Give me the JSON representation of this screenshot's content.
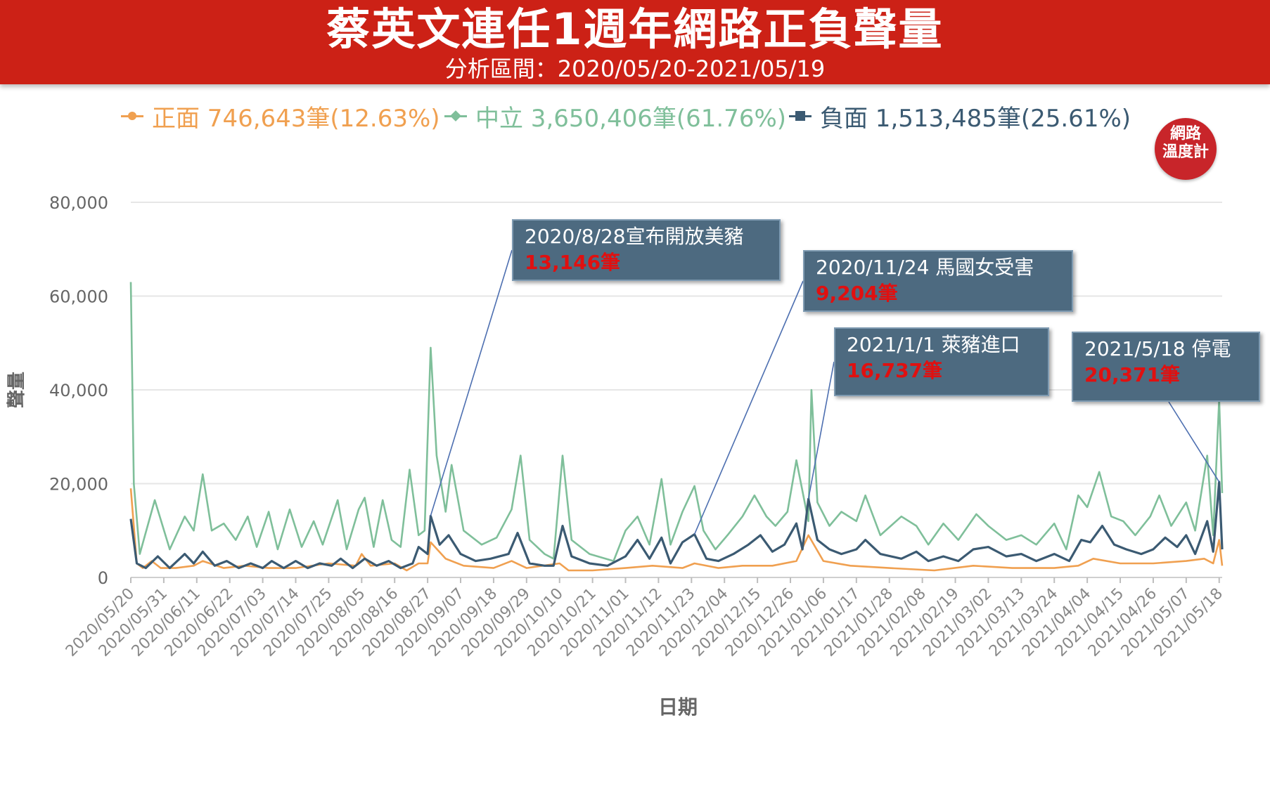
{
  "header": {
    "title": "蔡英文連任1週年網路正負聲量",
    "subtitle": "分析區間：2020/05/20-2021/05/19"
  },
  "badge": {
    "line1": "網路",
    "line2": "溫度計"
  },
  "legend": [
    {
      "label": "正面 746,643筆(12.63%)",
      "color": "#f0a050",
      "marker": "circle"
    },
    {
      "label": "中立 3,650,406筆(61.76%)",
      "color": "#7fbf9a",
      "marker": "diamond"
    },
    {
      "label": "負面 1,513,485筆(25.61%)",
      "color": "#3b5a72",
      "marker": "square"
    }
  ],
  "annotations": [
    {
      "title": "2020/8/28宣布開放美豬",
      "value": "13,146筆",
      "date": "2020/08/28"
    },
    {
      "title": "2020/11/24 馬國女受害",
      "value": "9,204筆",
      "date": "2020/11/24"
    },
    {
      "title": "2021/1/1 萊豬進口",
      "value": "16,737筆",
      "date": "2021/01/01"
    },
    {
      "title": "2021/5/18 停電",
      "value": "20,371筆",
      "date": "2021/05/18"
    }
  ],
  "chart_data": {
    "type": "line",
    "xlabel": "日期",
    "ylabel": "聲量",
    "ylim": [
      0,
      80000
    ],
    "yticks": [
      0,
      20000,
      40000,
      60000,
      80000
    ],
    "ytick_labels": [
      "0",
      "20,000",
      "40,000",
      "60,000",
      "80,000"
    ],
    "x_start": "2020/05/20",
    "x_end": "2021/05/19",
    "xtick_labels": [
      "2020/05/20",
      "2020/05/31",
      "2020/06/11",
      "2020/06/22",
      "2020/07/03",
      "2020/07/14",
      "2020/07/25",
      "2020/08/05",
      "2020/08/16",
      "2020/08/27",
      "2020/09/07",
      "2020/09/18",
      "2020/09/29",
      "2020/10/10",
      "2020/10/21",
      "2020/11/01",
      "2020/11/12",
      "2020/11/23",
      "2020/12/04",
      "2020/12/15",
      "2020/12/26",
      "2021/01/06",
      "2021/01/17",
      "2021/01/28",
      "2021/02/08",
      "2021/02/19",
      "2021/03/02",
      "2021/03/13",
      "2021/03/24",
      "2021/04/04",
      "2021/04/15",
      "2021/04/26",
      "2021/05/07",
      "2021/05/18"
    ],
    "grid": true,
    "legend_position": "top",
    "series": [
      {
        "name": "正面 746,643筆(12.63%)",
        "color": "#f0a050",
        "points": [
          [
            "2020/05/20",
            19000
          ],
          [
            "2020/05/22",
            3000
          ],
          [
            "2020/05/24",
            2000
          ],
          [
            "2020/05/27",
            3500
          ],
          [
            "2020/05/30",
            2000
          ],
          [
            "2020/06/04",
            2000
          ],
          [
            "2020/06/10",
            2500
          ],
          [
            "2020/06/13",
            3500
          ],
          [
            "2020/06/20",
            2000
          ],
          [
            "2020/06/27",
            2500
          ],
          [
            "2020/07/05",
            2000
          ],
          [
            "2020/07/14",
            2000
          ],
          [
            "2020/07/25",
            3000
          ],
          [
            "2020/08/03",
            2500
          ],
          [
            "2020/08/05",
            5000
          ],
          [
            "2020/08/08",
            2500
          ],
          [
            "2020/08/16",
            3000
          ],
          [
            "2020/08/20",
            1500
          ],
          [
            "2020/08/24",
            3000
          ],
          [
            "2020/08/27",
            3000
          ],
          [
            "2020/08/28",
            7500
          ],
          [
            "2020/09/02",
            4000
          ],
          [
            "2020/09/08",
            2500
          ],
          [
            "2020/09/18",
            2000
          ],
          [
            "2020/09/24",
            3500
          ],
          [
            "2020/09/29",
            2000
          ],
          [
            "2020/10/10",
            3000
          ],
          [
            "2020/10/13",
            1500
          ],
          [
            "2020/10/21",
            1500
          ],
          [
            "2020/11/01",
            2000
          ],
          [
            "2020/11/10",
            2500
          ],
          [
            "2020/11/20",
            2000
          ],
          [
            "2020/11/24",
            3000
          ],
          [
            "2020/12/02",
            2000
          ],
          [
            "2020/12/10",
            2500
          ],
          [
            "2020/12/20",
            2500
          ],
          [
            "2020/12/28",
            3500
          ],
          [
            "2021/01/01",
            9000
          ],
          [
            "2021/01/06",
            3500
          ],
          [
            "2021/01/15",
            2500
          ],
          [
            "2021/01/28",
            2000
          ],
          [
            "2021/02/12",
            1500
          ],
          [
            "2021/02/25",
            2500
          ],
          [
            "2021/03/10",
            2000
          ],
          [
            "2021/03/24",
            2000
          ],
          [
            "2021/04/01",
            2500
          ],
          [
            "2021/04/06",
            4000
          ],
          [
            "2021/04/15",
            3000
          ],
          [
            "2021/04/26",
            3000
          ],
          [
            "2021/05/07",
            3500
          ],
          [
            "2021/05/13",
            4000
          ],
          [
            "2021/05/16",
            3000
          ],
          [
            "2021/05/18",
            8000
          ],
          [
            "2021/05/19",
            2500
          ]
        ]
      },
      {
        "name": "中立 3,650,406筆(61.76%)",
        "color": "#7fbf9a",
        "points": [
          [
            "2020/05/20",
            63000
          ],
          [
            "2020/05/21",
            20000
          ],
          [
            "2020/05/23",
            5000
          ],
          [
            "2020/05/28",
            16500
          ],
          [
            "2020/06/02",
            6000
          ],
          [
            "2020/06/07",
            13000
          ],
          [
            "2020/06/10",
            10000
          ],
          [
            "2020/06/13",
            22000
          ],
          [
            "2020/06/16",
            10000
          ],
          [
            "2020/06/20",
            11500
          ],
          [
            "2020/06/24",
            8000
          ],
          [
            "2020/06/28",
            13000
          ],
          [
            "2020/07/01",
            6500
          ],
          [
            "2020/07/05",
            14000
          ],
          [
            "2020/07/08",
            6000
          ],
          [
            "2020/07/12",
            14500
          ],
          [
            "2020/07/16",
            6500
          ],
          [
            "2020/07/20",
            12000
          ],
          [
            "2020/07/23",
            7000
          ],
          [
            "2020/07/28",
            16500
          ],
          [
            "2020/07/31",
            6000
          ],
          [
            "2020/08/04",
            14500
          ],
          [
            "2020/08/06",
            17000
          ],
          [
            "2020/08/09",
            6500
          ],
          [
            "2020/08/12",
            16500
          ],
          [
            "2020/08/15",
            8000
          ],
          [
            "2020/08/18",
            6500
          ],
          [
            "2020/08/21",
            23000
          ],
          [
            "2020/08/24",
            9000
          ],
          [
            "2020/08/26",
            10000
          ],
          [
            "2020/08/28",
            49000
          ],
          [
            "2020/08/30",
            26000
          ],
          [
            "2020/09/02",
            14000
          ],
          [
            "2020/09/04",
            24000
          ],
          [
            "2020/09/08",
            10000
          ],
          [
            "2020/09/14",
            7000
          ],
          [
            "2020/09/19",
            8500
          ],
          [
            "2020/09/24",
            14500
          ],
          [
            "2020/09/27",
            26000
          ],
          [
            "2020/09/30",
            8000
          ],
          [
            "2020/10/05",
            5000
          ],
          [
            "2020/10/08",
            4000
          ],
          [
            "2020/10/11",
            26000
          ],
          [
            "2020/10/14",
            8000
          ],
          [
            "2020/10/20",
            5000
          ],
          [
            "2020/10/28",
            3500
          ],
          [
            "2020/11/01",
            10000
          ],
          [
            "2020/11/05",
            13000
          ],
          [
            "2020/11/09",
            7000
          ],
          [
            "2020/11/13",
            21000
          ],
          [
            "2020/11/16",
            7000
          ],
          [
            "2020/11/20",
            14000
          ],
          [
            "2020/11/24",
            19500
          ],
          [
            "2020/11/27",
            10000
          ],
          [
            "2020/12/01",
            6000
          ],
          [
            "2020/12/05",
            9000
          ],
          [
            "2020/12/10",
            13000
          ],
          [
            "2020/12/14",
            17500
          ],
          [
            "2020/12/18",
            13000
          ],
          [
            "2020/12/21",
            11000
          ],
          [
            "2020/12/25",
            14000
          ],
          [
            "2020/12/28",
            25000
          ],
          [
            "2021/01/01",
            12000
          ],
          [
            "2021/01/02",
            40000
          ],
          [
            "2021/01/04",
            16000
          ],
          [
            "2021/01/08",
            11000
          ],
          [
            "2021/01/12",
            14000
          ],
          [
            "2021/01/17",
            12000
          ],
          [
            "2021/01/20",
            17500
          ],
          [
            "2021/01/25",
            9000
          ],
          [
            "2021/02/01",
            13000
          ],
          [
            "2021/02/06",
            11000
          ],
          [
            "2021/02/10",
            7000
          ],
          [
            "2021/02/15",
            11500
          ],
          [
            "2021/02/20",
            8000
          ],
          [
            "2021/02/26",
            13500
          ],
          [
            "2021/03/02",
            11000
          ],
          [
            "2021/03/08",
            8000
          ],
          [
            "2021/03/13",
            9000
          ],
          [
            "2021/03/18",
            7000
          ],
          [
            "2021/03/24",
            11500
          ],
          [
            "2021/03/28",
            6000
          ],
          [
            "2021/04/01",
            17500
          ],
          [
            "2021/04/04",
            15000
          ],
          [
            "2021/04/08",
            22500
          ],
          [
            "2021/04/12",
            13000
          ],
          [
            "2021/04/16",
            12000
          ],
          [
            "2021/04/20",
            9000
          ],
          [
            "2021/04/25",
            13000
          ],
          [
            "2021/04/28",
            17500
          ],
          [
            "2021/05/02",
            11000
          ],
          [
            "2021/05/07",
            16000
          ],
          [
            "2021/05/10",
            10000
          ],
          [
            "2021/05/14",
            26000
          ],
          [
            "2021/05/16",
            9000
          ],
          [
            "2021/05/18",
            38000
          ],
          [
            "2021/05/19",
            18000
          ]
        ]
      },
      {
        "name": "負面 1,513,485筆(25.61%)",
        "color": "#3b5a72",
        "points": [
          [
            "2020/05/20",
            12500
          ],
          [
            "2020/05/22",
            3000
          ],
          [
            "2020/05/25",
            2000
          ],
          [
            "2020/05/29",
            4500
          ],
          [
            "2020/06/02",
            2000
          ],
          [
            "2020/06/07",
            5000
          ],
          [
            "2020/06/10",
            3000
          ],
          [
            "2020/06/13",
            5500
          ],
          [
            "2020/06/17",
            2500
          ],
          [
            "2020/06/21",
            3500
          ],
          [
            "2020/06/25",
            2000
          ],
          [
            "2020/06/29",
            3000
          ],
          [
            "2020/07/03",
            2000
          ],
          [
            "2020/07/06",
            3500
          ],
          [
            "2020/07/10",
            2000
          ],
          [
            "2020/07/14",
            3500
          ],
          [
            "2020/07/18",
            2000
          ],
          [
            "2020/07/22",
            3000
          ],
          [
            "2020/07/26",
            2500
          ],
          [
            "2020/07/29",
            4000
          ],
          [
            "2020/08/02",
            2000
          ],
          [
            "2020/08/06",
            4000
          ],
          [
            "2020/08/10",
            2500
          ],
          [
            "2020/08/14",
            3500
          ],
          [
            "2020/08/18",
            2000
          ],
          [
            "2020/08/22",
            3000
          ],
          [
            "2020/08/24",
            6500
          ],
          [
            "2020/08/27",
            5000
          ],
          [
            "2020/08/28",
            13146
          ],
          [
            "2020/08/31",
            7000
          ],
          [
            "2020/09/03",
            9000
          ],
          [
            "2020/09/07",
            5000
          ],
          [
            "2020/09/12",
            3500
          ],
          [
            "2020/09/17",
            4000
          ],
          [
            "2020/09/23",
            5000
          ],
          [
            "2020/09/26",
            9500
          ],
          [
            "2020/09/30",
            3000
          ],
          [
            "2020/10/05",
            2500
          ],
          [
            "2020/10/08",
            2500
          ],
          [
            "2020/10/11",
            11000
          ],
          [
            "2020/10/14",
            4500
          ],
          [
            "2020/10/20",
            3000
          ],
          [
            "2020/10/26",
            2500
          ],
          [
            "2020/11/01",
            4500
          ],
          [
            "2020/11/05",
            8000
          ],
          [
            "2020/11/09",
            4000
          ],
          [
            "2020/11/13",
            8500
          ],
          [
            "2020/11/16",
            3000
          ],
          [
            "2020/11/20",
            7500
          ],
          [
            "2020/11/24",
            9204
          ],
          [
            "2020/11/28",
            4000
          ],
          [
            "2020/12/02",
            3500
          ],
          [
            "2020/12/07",
            5000
          ],
          [
            "2020/12/12",
            7000
          ],
          [
            "2020/12/16",
            9000
          ],
          [
            "2020/12/20",
            5500
          ],
          [
            "2020/12/24",
            7000
          ],
          [
            "2020/12/28",
            11500
          ],
          [
            "2020/12/30",
            6000
          ],
          [
            "2021/01/01",
            16737
          ],
          [
            "2021/01/04",
            8000
          ],
          [
            "2021/01/08",
            6000
          ],
          [
            "2021/01/12",
            5000
          ],
          [
            "2021/01/17",
            6000
          ],
          [
            "2021/01/20",
            8000
          ],
          [
            "2021/01/25",
            5000
          ],
          [
            "2021/02/01",
            4000
          ],
          [
            "2021/02/06",
            5500
          ],
          [
            "2021/02/10",
            3500
          ],
          [
            "2021/02/15",
            4500
          ],
          [
            "2021/02/20",
            3500
          ],
          [
            "2021/02/25",
            6000
          ],
          [
            "2021/03/02",
            6500
          ],
          [
            "2021/03/08",
            4500
          ],
          [
            "2021/03/13",
            5000
          ],
          [
            "2021/03/18",
            3500
          ],
          [
            "2021/03/24",
            5000
          ],
          [
            "2021/03/29",
            3500
          ],
          [
            "2021/04/02",
            8000
          ],
          [
            "2021/04/05",
            7500
          ],
          [
            "2021/04/09",
            11000
          ],
          [
            "2021/04/13",
            7000
          ],
          [
            "2021/04/17",
            6000
          ],
          [
            "2021/04/22",
            5000
          ],
          [
            "2021/04/26",
            6000
          ],
          [
            "2021/04/30",
            8500
          ],
          [
            "2021/05/04",
            6500
          ],
          [
            "2021/05/07",
            9000
          ],
          [
            "2021/05/10",
            5000
          ],
          [
            "2021/05/14",
            12000
          ],
          [
            "2021/05/16",
            5500
          ],
          [
            "2021/05/18",
            20371
          ],
          [
            "2021/05/19",
            6000
          ]
        ]
      }
    ]
  }
}
